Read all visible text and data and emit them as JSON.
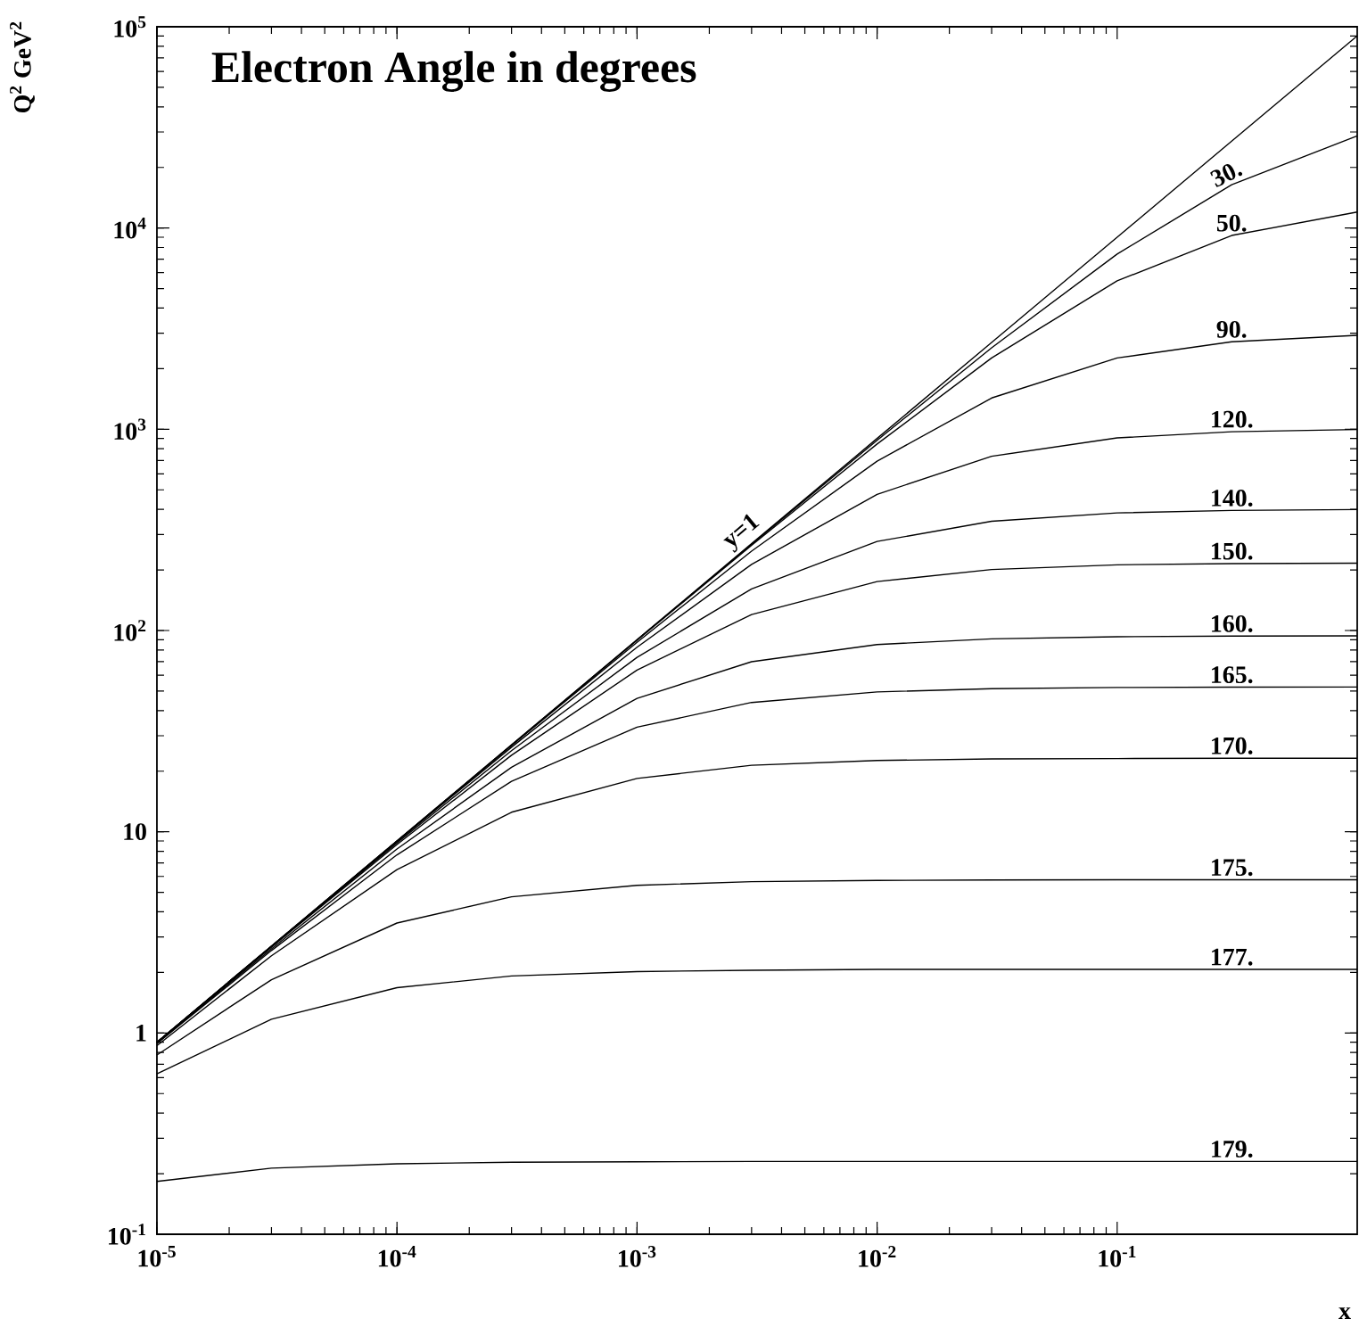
{
  "chart_data": {
    "type": "line",
    "title": "Electron Angle in degrees",
    "xlabel": "x",
    "ylabel": "Q$^{2}$ GeV$^{2}$",
    "log": "xy",
    "marker": "none",
    "line_style": "solid",
    "xlim": [
      1e-05,
      1
    ],
    "ylim": [
      0.1,
      100000
    ],
    "xticks": [
      {
        "value": 1e-05,
        "label": "10$^{-5}$"
      },
      {
        "value": 0.0001,
        "label": "10$^{-4}$"
      },
      {
        "value": 0.001,
        "label": "10$^{-3}$"
      },
      {
        "value": 0.01,
        "label": "10$^{-2}$"
      },
      {
        "value": 0.1,
        "label": "10$^{-1}$"
      }
    ],
    "yticks": [
      {
        "value": 0.1,
        "label": "10$^{-1}$"
      },
      1,
      10,
      {
        "value": 100,
        "label": "10$^{2}$"
      },
      {
        "value": 1000,
        "label": "10$^{3}$"
      },
      {
        "value": 10000,
        "label": "10$^{4}$"
      },
      {
        "value": 100000,
        "label": "10$^{5}$"
      }
    ],
    "x": [
      1e-05,
      3e-05,
      0.0001,
      0.0003,
      0.001,
      0.003,
      0.01,
      0.03,
      0.1,
      0.3,
      1
    ],
    "series": [
      {
        "name": "y=1",
        "color": "#000000",
        "values": [
          0.9,
          2.7,
          9,
          27,
          90,
          270,
          900,
          2700,
          9000,
          27000,
          90000
        ]
      },
      {
        "name": "30.",
        "color": "#000000",
        "values": [
          0.9,
          2.7,
          9,
          27,
          89.8,
          268,
          881,
          2540,
          7420,
          16400,
          28700
        ]
      },
      {
        "name": "50.",
        "color": "#000000",
        "values": [
          0.9,
          2.7,
          8.99,
          26.9,
          89.4,
          265,
          845,
          2260,
          5460,
          9180,
          12000
        ]
      },
      {
        "name": "90.",
        "color": "#000000",
        "values": [
          0.9,
          2.7,
          8.97,
          26.8,
          87.4,
          248,
          694,
          1430,
          2260,
          2720,
          2930
        ]
      },
      {
        "name": "120.",
        "color": "#000000",
        "values": [
          0.9,
          2.69,
          8.92,
          26.3,
          82.6,
          213,
          475,
          734,
          906,
          972,
          997
        ]
      },
      {
        "name": "140.",
        "color": "#000000",
        "values": [
          0.898,
          2.68,
          8.8,
          25.3,
          73.5,
          161,
          277,
          349,
          384,
          395,
          399
        ]
      },
      {
        "name": "150.",
        "color": "#000000",
        "values": [
          0.896,
          2.67,
          8.64,
          24.0,
          63.6,
          120,
          175,
          201,
          212,
          215,
          216
        ]
      },
      {
        "name": "160.",
        "color": "#000000",
        "values": [
          0.891,
          2.62,
          8.21,
          20.9,
          46.0,
          70.0,
          85.2,
          90.9,
          93.1,
          93.8,
          94.0
        ]
      },
      {
        "name": "165.",
        "color": "#000000",
        "values": [
          0.885,
          2.57,
          7.68,
          17.8,
          33.1,
          43.9,
          49.5,
          51.4,
          52.1,
          52.3,
          52.4
        ]
      },
      {
        "name": "170.",
        "color": "#000000",
        "values": [
          0.866,
          2.42,
          6.48,
          12.5,
          18.4,
          21.4,
          22.6,
          23.0,
          23.1,
          23.2,
          23.2
        ]
      },
      {
        "name": "175.",
        "color": "#000000",
        "values": [
          0.778,
          1.84,
          3.52,
          4.75,
          5.42,
          5.65,
          5.73,
          5.76,
          5.77,
          5.77,
          5.77
        ]
      },
      {
        "name": "177.",
        "color": "#000000",
        "values": [
          0.627,
          1.17,
          1.68,
          1.92,
          2.02,
          2.05,
          2.07,
          2.07,
          2.07,
          2.07,
          2.07
        ]
      },
      {
        "name": "179.",
        "color": "#000000",
        "values": [
          0.183,
          0.213,
          0.224,
          0.228,
          0.229,
          0.23,
          0.23,
          0.23,
          0.23,
          0.23,
          0.23
        ]
      }
    ]
  }
}
